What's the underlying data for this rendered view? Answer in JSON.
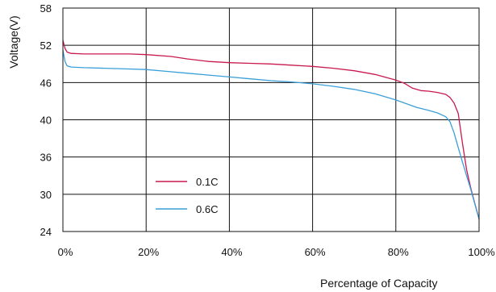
{
  "chart_data": {
    "type": "line",
    "xlabel": "Percentage of Capacity",
    "ylabel": "Voltage(V)",
    "xlim": [
      0,
      100
    ],
    "x_ticks": [
      "0%",
      "20%",
      "40%",
      "60%",
      "80%",
      "100%"
    ],
    "y_ticks": [
      "58",
      "52",
      "46",
      "40",
      "36",
      "30",
      "24"
    ],
    "grid": true,
    "legend_position": "lower-left",
    "series": [
      {
        "name": "0.1C",
        "color": "#c8194f",
        "points": [
          [
            0,
            52.8
          ],
          [
            0.5,
            51.5
          ],
          [
            1,
            50.9
          ],
          [
            2,
            50.7
          ],
          [
            5,
            50.6
          ],
          [
            10,
            50.6
          ],
          [
            16,
            50.6
          ],
          [
            20,
            50.5
          ],
          [
            26,
            50.2
          ],
          [
            30,
            49.8
          ],
          [
            35,
            49.4
          ],
          [
            40,
            49.2
          ],
          [
            45,
            49.1
          ],
          [
            50,
            49.0
          ],
          [
            55,
            48.8
          ],
          [
            60,
            48.6
          ],
          [
            65,
            48.3
          ],
          [
            70,
            47.9
          ],
          [
            75,
            47.3
          ],
          [
            80,
            46.4
          ],
          [
            82,
            45.9
          ],
          [
            84,
            45.1
          ],
          [
            86,
            44.7
          ],
          [
            88,
            44.6
          ],
          [
            90,
            44.4
          ],
          [
            92,
            44.1
          ],
          [
            93,
            43.6
          ],
          [
            94,
            42.7
          ],
          [
            95,
            41.0
          ],
          [
            96,
            37.5
          ],
          [
            97,
            34.0
          ],
          [
            98,
            31.0
          ],
          [
            99,
            28.5
          ],
          [
            100,
            26.0
          ]
        ]
      },
      {
        "name": "0.6C",
        "color": "#3a9fd8",
        "points": [
          [
            0,
            51.2
          ],
          [
            0.5,
            49.4
          ],
          [
            1,
            48.7
          ],
          [
            2,
            48.5
          ],
          [
            5,
            48.4
          ],
          [
            10,
            48.3
          ],
          [
            15,
            48.2
          ],
          [
            20,
            48.1
          ],
          [
            25,
            47.8
          ],
          [
            30,
            47.5
          ],
          [
            35,
            47.2
          ],
          [
            40,
            46.9
          ],
          [
            45,
            46.6
          ],
          [
            50,
            46.3
          ],
          [
            55,
            46.1
          ],
          [
            60,
            45.8
          ],
          [
            65,
            45.4
          ],
          [
            70,
            44.9
          ],
          [
            75,
            44.2
          ],
          [
            80,
            43.2
          ],
          [
            85,
            42.0
          ],
          [
            88,
            41.5
          ],
          [
            90,
            41.1
          ],
          [
            92,
            40.5
          ],
          [
            93,
            39.8
          ],
          [
            94,
            38.6
          ],
          [
            95,
            37.0
          ],
          [
            96,
            35.2
          ],
          [
            97,
            33.0
          ],
          [
            98,
            30.8
          ],
          [
            99,
            28.4
          ],
          [
            100,
            26.0
          ]
        ]
      }
    ]
  }
}
